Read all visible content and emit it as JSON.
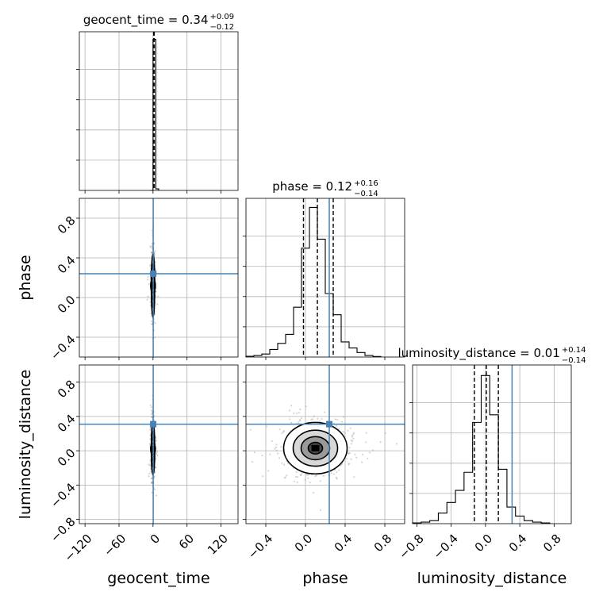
{
  "chart_data": {
    "type": "corner",
    "parameters": [
      "geocent_time",
      "phase",
      "luminosity_distance"
    ],
    "truths": {
      "geocent_time": 0.34,
      "phase": 0.24,
      "luminosity_distance": 0.31
    },
    "truth_color": "#4682b4",
    "titles": [
      {
        "param": "geocent_time",
        "text": "geocent_time = 0.34",
        "sup": "+0.09",
        "sub": "−0.12"
      },
      {
        "param": "phase",
        "text": "phase = 0.12",
        "sup": "+0.16",
        "sub": "−0.14"
      },
      {
        "param": "luminosity_distance",
        "text": "luminosity_distance = 0.01",
        "sup": "+0.14",
        "sub": "−0.14"
      }
    ],
    "xlabels": [
      "geocent_time",
      "phase",
      "luminosity_distance"
    ],
    "ylabels": [
      "phase",
      "luminosity_distance"
    ],
    "ranges": {
      "geocent_time": [
        -130,
        150
      ],
      "phase": [
        -0.6,
        1.0
      ],
      "luminosity_distance": [
        -0.85,
        1.0
      ]
    },
    "ticks": {
      "geocent_time": [
        "−120",
        "−60",
        "0",
        "60",
        "120"
      ],
      "phase": [
        "−0.4",
        "0.0",
        "0.4",
        "0.8"
      ],
      "luminosity_distance": [
        "−0.8",
        "−0.4",
        "0.0",
        "0.4",
        "0.8"
      ]
    },
    "histograms": {
      "geocent_time": {
        "edges": [
          -5,
          0,
          5,
          10
        ],
        "counts": [
          0,
          1.0,
          0.01
        ],
        "quantiles": [
          0.22,
          0.34,
          0.43
        ]
      },
      "phase": {
        "edges": [
          -0.6,
          -0.52,
          -0.44,
          -0.36,
          -0.28,
          -0.2,
          -0.12,
          -0.04,
          0.04,
          0.12,
          0.2,
          0.28,
          0.36,
          0.44,
          0.52,
          0.6,
          0.68,
          0.76
        ],
        "counts": [
          0.005,
          0.01,
          0.02,
          0.05,
          0.09,
          0.15,
          0.33,
          0.72,
          0.99,
          0.78,
          0.42,
          0.28,
          0.1,
          0.06,
          0.03,
          0.01,
          0.004
        ],
        "quantiles": [
          -0.02,
          0.12,
          0.28
        ]
      },
      "luminosity_distance": {
        "edges": [
          -0.85,
          -0.75,
          -0.65,
          -0.55,
          -0.45,
          -0.35,
          -0.25,
          -0.15,
          -0.05,
          0.05,
          0.15,
          0.25,
          0.35,
          0.45,
          0.55,
          0.65,
          0.75
        ],
        "counts": [
          0.005,
          0.01,
          0.02,
          0.07,
          0.14,
          0.22,
          0.34,
          0.67,
          0.98,
          0.72,
          0.36,
          0.11,
          0.05,
          0.02,
          0.01,
          0.005
        ],
        "quantiles": [
          -0.13,
          0.01,
          0.15
        ]
      }
    },
    "scatter_2d": [
      {
        "x": "geocent_time",
        "y": "phase",
        "center": [
          0,
          0.12
        ],
        "spread": [
          1.5,
          0.16
        ]
      },
      {
        "x": "geocent_time",
        "y": "luminosity_distance",
        "center": [
          0,
          0.02
        ],
        "spread": [
          1.5,
          0.15
        ]
      },
      {
        "x": "phase",
        "y": "luminosity_distance",
        "center": [
          0.1,
          0.03
        ],
        "spread": [
          0.16,
          0.15
        ]
      }
    ],
    "grid": true
  }
}
